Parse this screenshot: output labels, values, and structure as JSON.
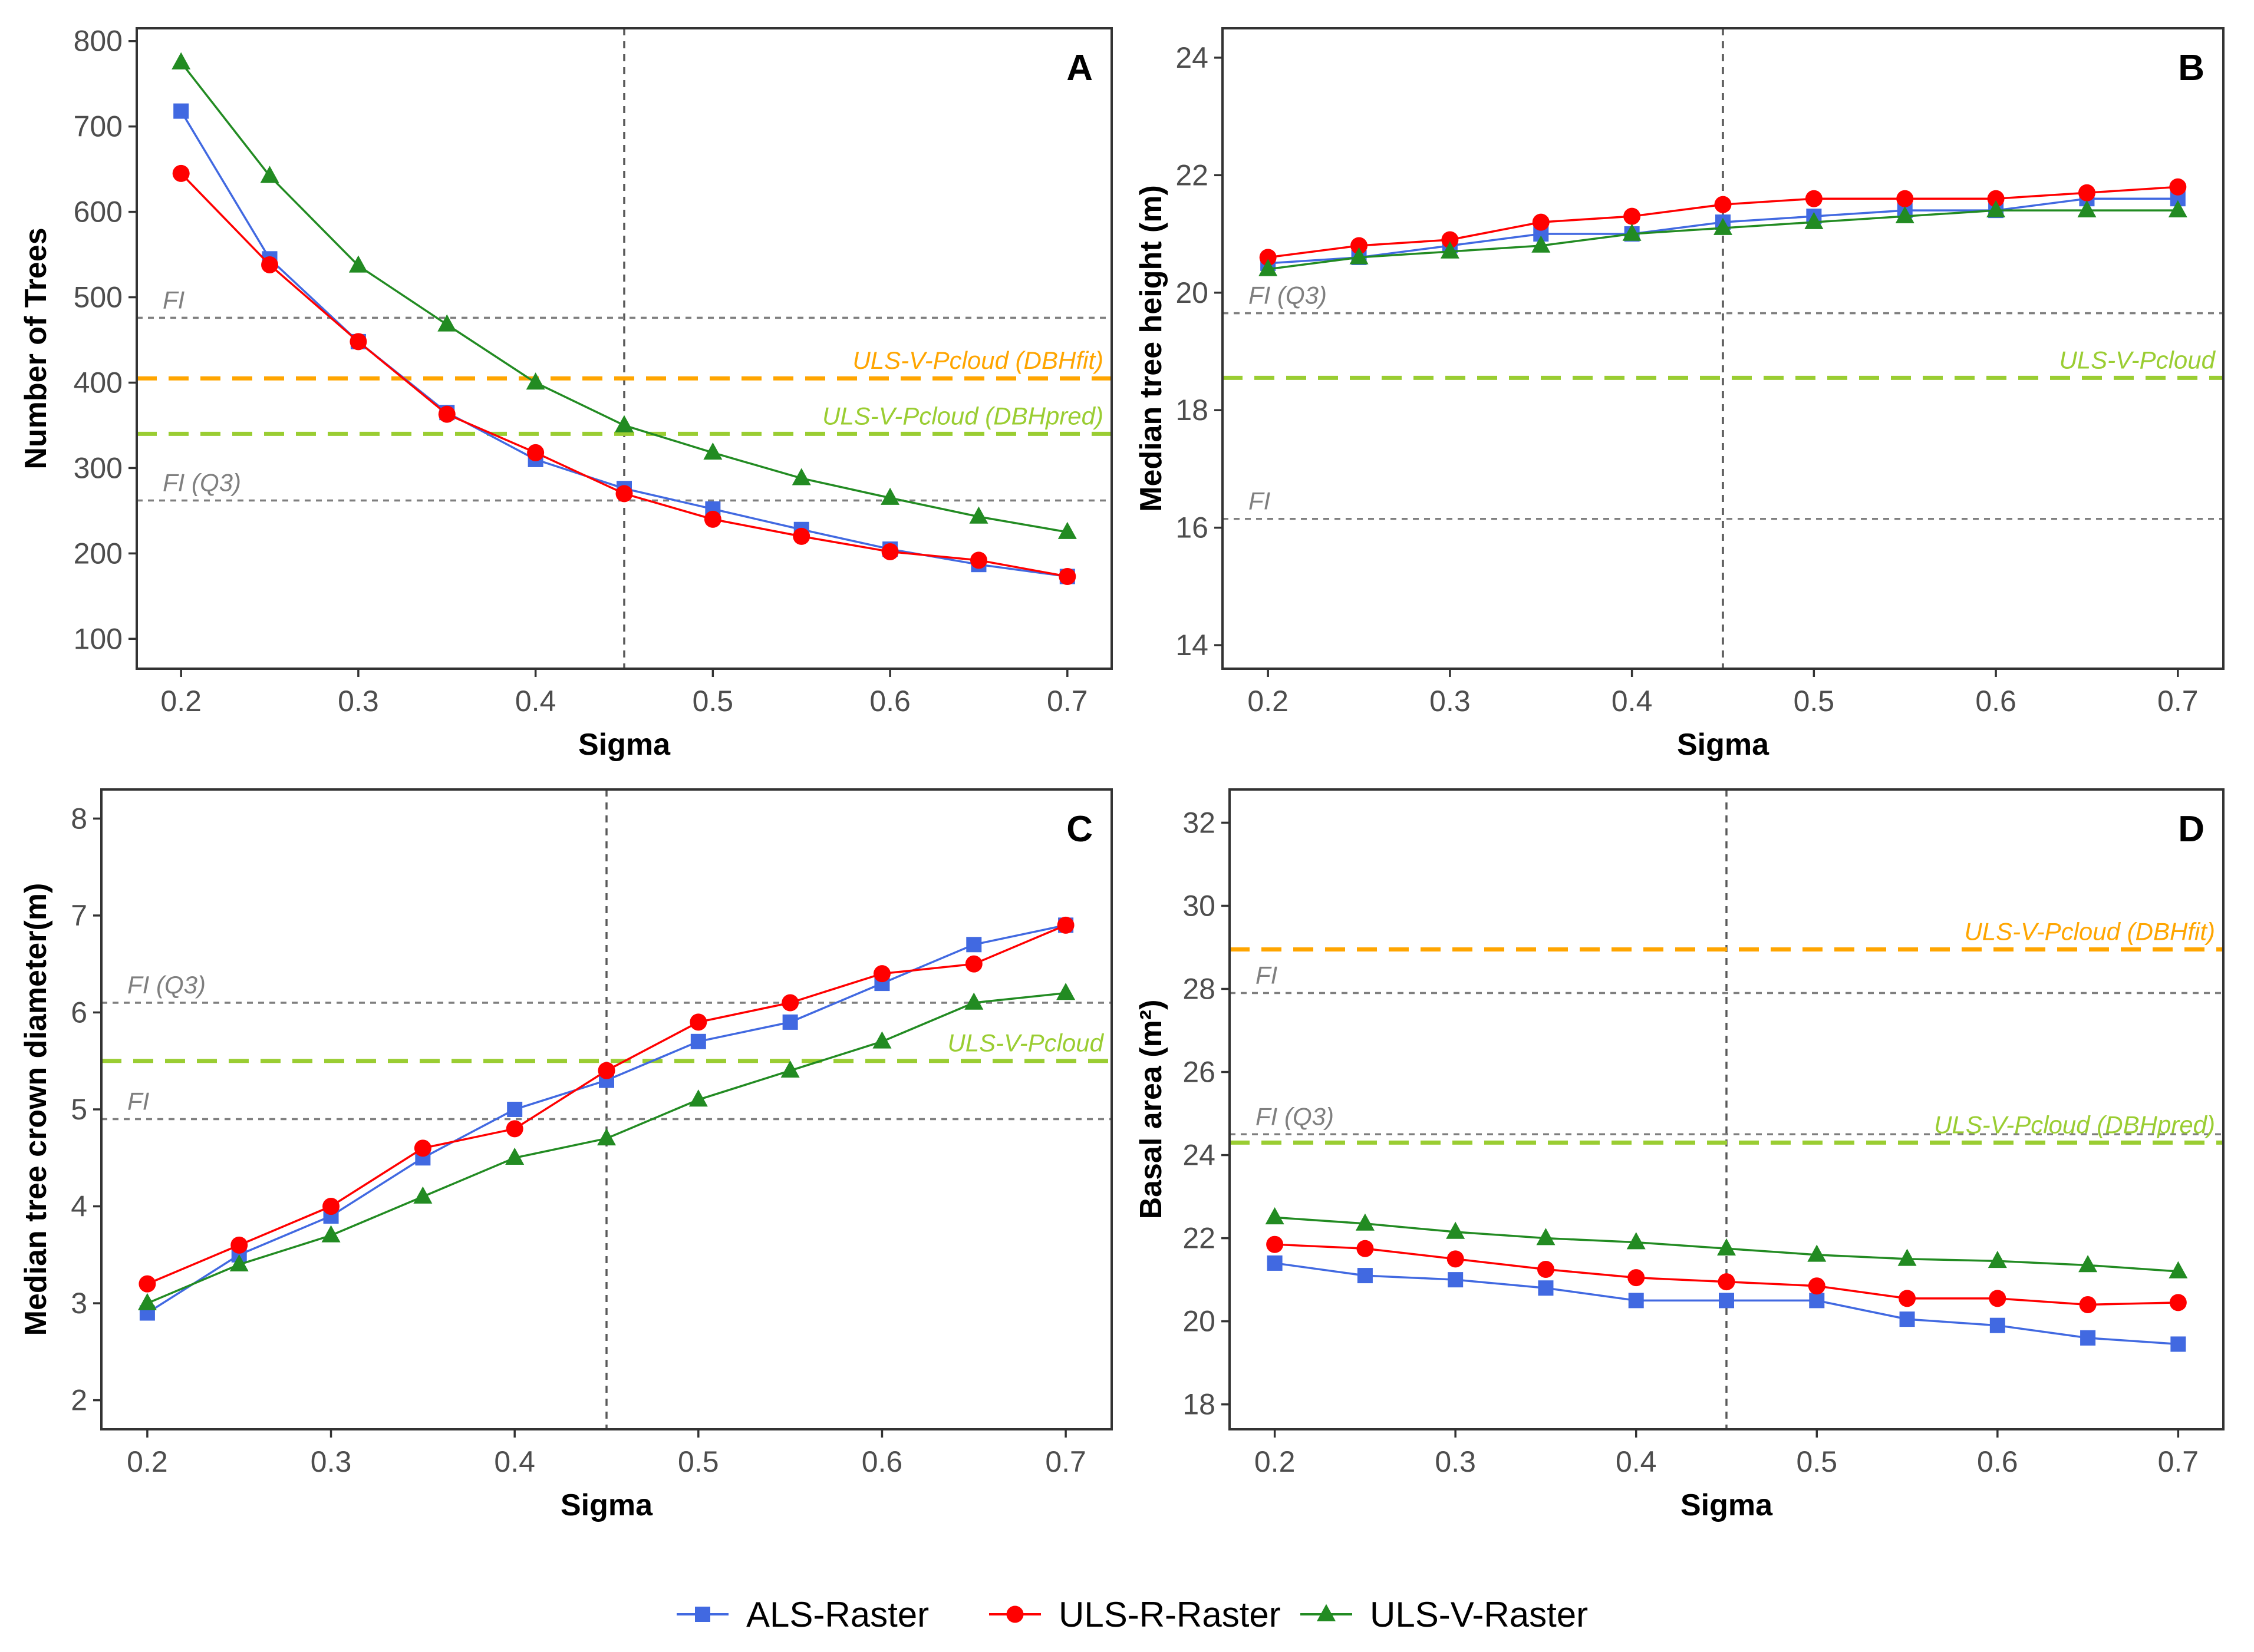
{
  "chart_data": [
    {
      "type": "line",
      "panel": "A",
      "xlabel": "Sigma",
      "ylabel": "Number of Trees",
      "x": [
        0.2,
        0.25,
        0.3,
        0.35,
        0.4,
        0.45,
        0.5,
        0.55,
        0.6,
        0.65,
        0.7
      ],
      "xlim": [
        0.175,
        0.725
      ],
      "xticks": [
        0.2,
        0.3,
        0.4,
        0.5,
        0.6,
        0.7
      ],
      "xtick_labels": [
        "0.2",
        "0.3",
        "0.4",
        "0.5",
        "0.6",
        "0.7"
      ],
      "ylim": [
        65,
        815
      ],
      "yticks": [
        100,
        200,
        300,
        400,
        500,
        600,
        700,
        800
      ],
      "ytick_labels": [
        "100",
        "200",
        "300",
        "400",
        "500",
        "600",
        "700",
        "800"
      ],
      "vline": 0.45,
      "series": [
        {
          "name": "ALS-Raster",
          "values": [
            718,
            545,
            448,
            365,
            310,
            276,
            252,
            228,
            205,
            187,
            173
          ]
        },
        {
          "name": "ULS-R-Raster",
          "values": [
            645,
            538,
            448,
            363,
            318,
            270,
            240,
            220,
            202,
            192,
            173
          ]
        },
        {
          "name": "ULS-V-Raster",
          "values": [
            775,
            642,
            537,
            468,
            400,
            350,
            318,
            288,
            265,
            243,
            225
          ]
        }
      ],
      "reference_lines": [
        {
          "label": "FI",
          "value": 476,
          "style": "dotted",
          "color": "#7f7f7f",
          "anchor": "left"
        },
        {
          "label": "ULS-V-Pcloud (DBHfit)",
          "value": 405,
          "style": "dashed",
          "color": "#FFA500",
          "anchor": "right"
        },
        {
          "label": "ULS-V-Pcloud (DBHpred)",
          "value": 340,
          "style": "dashed",
          "color": "#9ACD32",
          "anchor": "right"
        },
        {
          "label": "FI (Q3)",
          "value": 262,
          "style": "dotted",
          "color": "#7f7f7f",
          "anchor": "left"
        }
      ]
    },
    {
      "type": "line",
      "panel": "B",
      "xlabel": "Sigma",
      "ylabel": "Median tree height (m)",
      "x": [
        0.2,
        0.25,
        0.3,
        0.35,
        0.4,
        0.45,
        0.5,
        0.55,
        0.6,
        0.65,
        0.7
      ],
      "xlim": [
        0.175,
        0.725
      ],
      "xticks": [
        0.2,
        0.3,
        0.4,
        0.5,
        0.6,
        0.7
      ],
      "xtick_labels": [
        "0.2",
        "0.3",
        "0.4",
        "0.5",
        "0.6",
        "0.7"
      ],
      "ylim": [
        13.6,
        24.5
      ],
      "yticks": [
        14,
        16,
        18,
        20,
        22,
        24
      ],
      "ytick_labels": [
        "14",
        "16",
        "18",
        "20",
        "22",
        "24"
      ],
      "vline": 0.45,
      "series": [
        {
          "name": "ALS-Raster",
          "values": [
            20.5,
            20.6,
            20.8,
            21.0,
            21.0,
            21.2,
            21.3,
            21.4,
            21.4,
            21.6,
            21.6
          ]
        },
        {
          "name": "ULS-R-Raster",
          "values": [
            20.6,
            20.8,
            20.9,
            21.2,
            21.3,
            21.5,
            21.6,
            21.6,
            21.6,
            21.7,
            21.8
          ]
        },
        {
          "name": "ULS-V-Raster",
          "values": [
            20.4,
            20.6,
            20.7,
            20.8,
            21.0,
            21.1,
            21.2,
            21.3,
            21.4,
            21.4,
            21.4
          ]
        }
      ],
      "reference_lines": [
        {
          "label": "FI (Q3)",
          "value": 19.65,
          "style": "dotted",
          "color": "#7f7f7f",
          "anchor": "left"
        },
        {
          "label": "ULS-V-Pcloud",
          "value": 18.55,
          "style": "dashed",
          "color": "#9ACD32",
          "anchor": "right"
        },
        {
          "label": "FI",
          "value": 16.15,
          "style": "dotted",
          "color": "#7f7f7f",
          "anchor": "left"
        }
      ]
    },
    {
      "type": "line",
      "panel": "C",
      "xlabel": "Sigma",
      "ylabel": "Median tree crown diameter(m)",
      "x": [
        0.2,
        0.25,
        0.3,
        0.35,
        0.4,
        0.45,
        0.5,
        0.55,
        0.6,
        0.65,
        0.7
      ],
      "xlim": [
        0.175,
        0.725
      ],
      "xticks": [
        0.2,
        0.3,
        0.4,
        0.5,
        0.6,
        0.7
      ],
      "xtick_labels": [
        "0.2",
        "0.3",
        "0.4",
        "0.5",
        "0.6",
        "0.7"
      ],
      "ylim": [
        1.7,
        8.3
      ],
      "yticks": [
        2,
        3,
        4,
        5,
        6,
        7,
        8
      ],
      "ytick_labels": [
        "2",
        "3",
        "4",
        "5",
        "6",
        "7",
        "8"
      ],
      "vline": 0.45,
      "series": [
        {
          "name": "ALS-Raster",
          "values": [
            2.9,
            3.5,
            3.9,
            4.5,
            5.0,
            5.3,
            5.7,
            5.9,
            6.3,
            6.7,
            6.9
          ]
        },
        {
          "name": "ULS-R-Raster",
          "values": [
            3.2,
            3.6,
            4.0,
            4.6,
            4.8,
            5.4,
            5.9,
            6.1,
            6.4,
            6.5,
            6.9
          ]
        },
        {
          "name": "ULS-V-Raster",
          "values": [
            3.0,
            3.4,
            3.7,
            4.1,
            4.5,
            4.7,
            5.1,
            5.4,
            5.7,
            6.1,
            6.2
          ]
        }
      ],
      "reference_lines": [
        {
          "label": "FI (Q3)",
          "value": 6.1,
          "style": "dotted",
          "color": "#7f7f7f",
          "anchor": "left"
        },
        {
          "label": "ULS-V-Pcloud",
          "value": 5.5,
          "style": "dashed",
          "color": "#9ACD32",
          "anchor": "right"
        },
        {
          "label": "FI",
          "value": 4.9,
          "style": "dotted",
          "color": "#7f7f7f",
          "anchor": "left"
        }
      ]
    },
    {
      "type": "line",
      "panel": "D",
      "xlabel": "Sigma",
      "ylabel": "Basal area (m²)",
      "x": [
        0.2,
        0.25,
        0.3,
        0.35,
        0.4,
        0.45,
        0.5,
        0.55,
        0.6,
        0.65,
        0.7
      ],
      "xlim": [
        0.175,
        0.725
      ],
      "xticks": [
        0.2,
        0.3,
        0.4,
        0.5,
        0.6,
        0.7
      ],
      "xtick_labels": [
        "0.2",
        "0.3",
        "0.4",
        "0.5",
        "0.6",
        "0.7"
      ],
      "ylim": [
        17.4,
        32.8
      ],
      "yticks": [
        18,
        20,
        22,
        24,
        26,
        28,
        30,
        32
      ],
      "ytick_labels": [
        "18",
        "20",
        "22",
        "24",
        "26",
        "28",
        "30",
        "32"
      ],
      "vline": 0.45,
      "series": [
        {
          "name": "ALS-Raster",
          "values": [
            21.4,
            21.1,
            21.0,
            20.8,
            20.5,
            20.5,
            20.5,
            20.05,
            19.9,
            19.6,
            19.45
          ]
        },
        {
          "name": "ULS-R-Raster",
          "values": [
            21.85,
            21.75,
            21.5,
            21.25,
            21.05,
            20.95,
            20.85,
            20.55,
            20.55,
            20.4,
            20.45
          ]
        },
        {
          "name": "ULS-V-Raster",
          "values": [
            22.5,
            22.35,
            22.15,
            22.0,
            21.9,
            21.75,
            21.6,
            21.5,
            21.45,
            21.35,
            21.2
          ]
        }
      ],
      "reference_lines": [
        {
          "label": "ULS-V-Pcloud (DBHfit)",
          "value": 28.95,
          "style": "dashed",
          "color": "#FFA500",
          "anchor": "right"
        },
        {
          "label": "FI",
          "value": 27.9,
          "style": "dotted",
          "color": "#7f7f7f",
          "anchor": "left"
        },
        {
          "label": "FI (Q3)",
          "value": 24.5,
          "style": "dotted",
          "color": "#7f7f7f",
          "anchor": "left"
        },
        {
          "label": "ULS-V-Pcloud (DBHpred)",
          "value": 24.3,
          "style": "dashed",
          "color": "#9ACD32",
          "anchor": "right"
        }
      ]
    }
  ],
  "legend": {
    "position": "bottom",
    "items": [
      {
        "name": "ALS-Raster",
        "color": "#4169E1",
        "marker": "square"
      },
      {
        "name": "ULS-R-Raster",
        "color": "#FF0000",
        "marker": "circle"
      },
      {
        "name": "ULS-V-Raster",
        "color": "#228B22",
        "marker": "triangle"
      }
    ]
  },
  "series_styles": {
    "ALS-Raster": {
      "color": "#4169E1",
      "marker": "square"
    },
    "ULS-R-Raster": {
      "color": "#FF0000",
      "marker": "circle"
    },
    "ULS-V-Raster": {
      "color": "#228B22",
      "marker": "triangle"
    }
  },
  "colors": {
    "reference_grey": "#7f7f7f",
    "vline_grey": "#595959",
    "frame": "#333333"
  }
}
